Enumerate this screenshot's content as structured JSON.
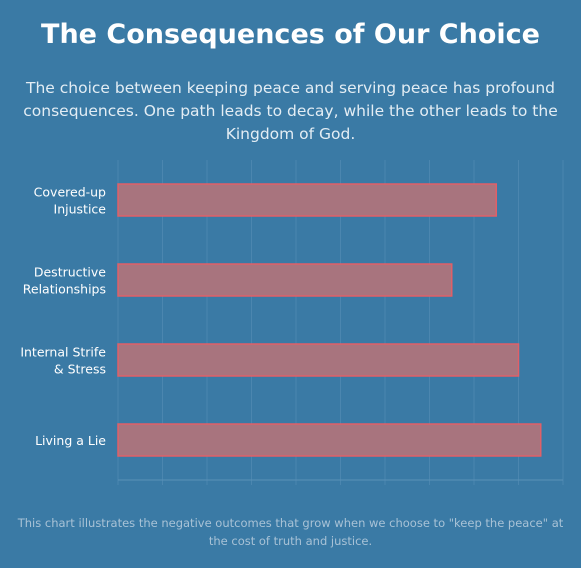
{
  "header": {
    "title": "The Consequences of Our Choice",
    "subtitle": "The choice between keeping peace and serving peace has profound consequences. One path leads to decay, while the other leads to the Kingdom of God."
  },
  "footer": {
    "caption": "This chart illustrates the negative outcomes that grow when we choose to \"keep the peace\" at the cost of truth and justice."
  },
  "chart_data": {
    "type": "bar",
    "orientation": "horizontal",
    "categories": [
      [
        "Covered-up",
        "Injustice"
      ],
      [
        "Destructive",
        "Relationships"
      ],
      [
        "Internal Strife",
        "& Stress"
      ],
      [
        "Living a Lie"
      ]
    ],
    "values": [
      85,
      75,
      90,
      95
    ],
    "xlim": [
      0,
      100
    ],
    "grid": true,
    "legend": "none",
    "colors": {
      "bar_fill": "#a8747e",
      "bar_stroke": "#e06068",
      "grid": "#5a91b8",
      "label": "#ffffff"
    }
  }
}
